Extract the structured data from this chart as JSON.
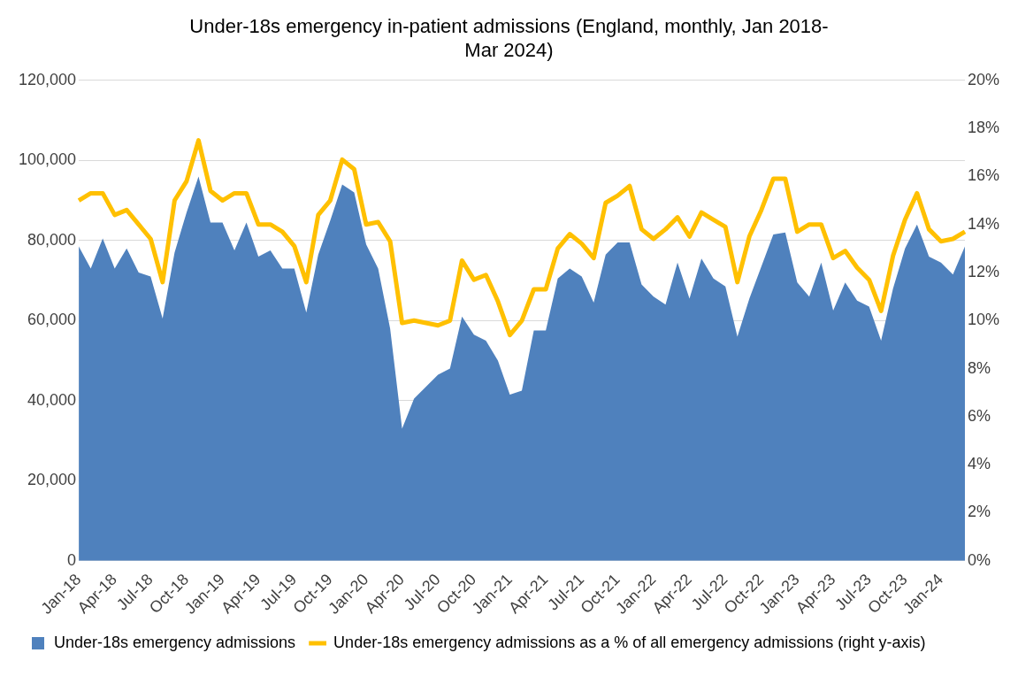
{
  "chart_data": {
    "type": "area",
    "title": "Under-18s emergency in-patient admissions (England, monthly, Jan 2018-\nMar 2024)",
    "categories": [
      "Jan-18",
      null,
      null,
      "Apr-18",
      null,
      null,
      "Jul-18",
      null,
      null,
      "Oct-18",
      null,
      null,
      "Jan-19",
      null,
      null,
      "Apr-19",
      null,
      null,
      "Jul-19",
      null,
      null,
      "Oct-19",
      null,
      null,
      "Jan-20",
      null,
      null,
      "Apr-20",
      null,
      null,
      "Jul-20",
      null,
      null,
      "Oct-20",
      null,
      null,
      "Jan-21",
      null,
      null,
      "Apr-21",
      null,
      null,
      "Jul-21",
      null,
      null,
      "Oct-21",
      null,
      null,
      "Jan-22",
      null,
      null,
      "Apr-22",
      null,
      null,
      "Jul-22",
      null,
      null,
      "Oct-22",
      null,
      null,
      "Jan-23",
      null,
      null,
      "Apr-23",
      null,
      null,
      "Jul-23",
      null,
      null,
      "Oct-23",
      null,
      null,
      "Jan-24",
      null,
      null
    ],
    "series": [
      {
        "name": "Under-18s emergency admissions",
        "color": "#4f81bd",
        "values": [
          78500,
          73000,
          80500,
          73000,
          78000,
          72000,
          71000,
          60500,
          77000,
          87000,
          96000,
          84500,
          84500,
          77500,
          84500,
          76000,
          77500,
          73000,
          73000,
          62000,
          76500,
          85000,
          94000,
          92000,
          79000,
          73000,
          58000,
          33000,
          40500,
          43500,
          46500,
          48000,
          61000,
          56500,
          55000,
          50000,
          41500,
          42500,
          57500,
          57500,
          70500,
          73000,
          71000,
          64500,
          76500,
          79500,
          79500,
          69000,
          66000,
          64000,
          74500,
          65500,
          75500,
          70500,
          68500,
          56000,
          65500,
          73500,
          81500,
          82000,
          69500,
          66000,
          74500,
          62500,
          69500,
          65000,
          63500,
          55000,
          68000,
          78000,
          84000,
          76000,
          74500,
          71500,
          78500
        ]
      },
      {
        "name": "Under-18s emergency admissions as a % of all emergency admissions (right y-axis)",
        "type": "line",
        "axis": "y2",
        "color": "#ffc000",
        "values": [
          15.0,
          15.3,
          15.3,
          14.4,
          14.6,
          14.0,
          13.4,
          11.6,
          15.0,
          15.8,
          17.5,
          15.4,
          15.0,
          15.3,
          15.3,
          14.0,
          14.0,
          13.7,
          13.1,
          11.6,
          14.4,
          15.0,
          16.7,
          16.3,
          14.0,
          14.1,
          13.3,
          9.9,
          10.0,
          9.9,
          9.8,
          10.0,
          12.5,
          11.7,
          11.9,
          10.8,
          9.4,
          10.0,
          11.3,
          11.3,
          13.0,
          13.6,
          13.2,
          12.6,
          14.9,
          15.2,
          15.6,
          13.8,
          13.4,
          13.8,
          14.3,
          13.5,
          14.5,
          14.2,
          13.9,
          11.6,
          13.5,
          14.6,
          15.9,
          15.9,
          13.7,
          14.0,
          14.0,
          12.6,
          12.9,
          12.2,
          11.7,
          10.4,
          12.7,
          14.2,
          15.3,
          13.8,
          13.3,
          13.4,
          13.7
        ]
      }
    ],
    "ylim": [
      0,
      120000
    ],
    "yticks": [
      0,
      {
        "value": 20000,
        "label": "20,000"
      },
      {
        "value": 40000,
        "label": "40,000"
      },
      {
        "value": 60000,
        "label": "60,000"
      },
      {
        "value": 80000,
        "label": "80,000"
      },
      {
        "value": 100000,
        "label": "100,000"
      },
      {
        "value": 120000,
        "label": "120,000"
      }
    ],
    "y2lim": [
      0,
      20
    ],
    "y2ticks": [
      {
        "value": 0,
        "label": "0%"
      },
      {
        "value": 2,
        "label": "2%"
      },
      {
        "value": 4,
        "label": "4%"
      },
      {
        "value": 6,
        "label": "6%"
      },
      {
        "value": 8,
        "label": "8%"
      },
      {
        "value": 10,
        "label": "10%"
      },
      {
        "value": 12,
        "label": "12%"
      },
      {
        "value": 14,
        "label": "14%"
      },
      {
        "value": 16,
        "label": "16%"
      },
      {
        "value": 18,
        "label": "18%"
      },
      {
        "value": 20,
        "label": "20%"
      }
    ],
    "grid": "y",
    "legend": "bottom left",
    "marker": "none",
    "line_style": "solid"
  }
}
